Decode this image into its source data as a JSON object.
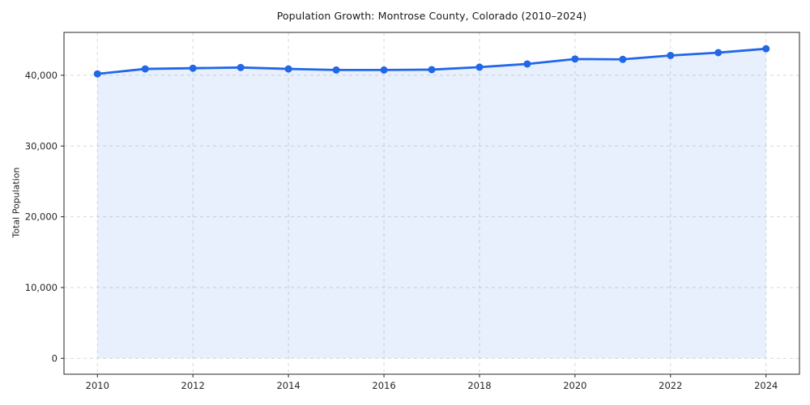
{
  "chart_data": {
    "type": "line",
    "title": "Population Growth: Montrose County, Colorado (2010–2024)",
    "xlabel": "",
    "ylabel": "Total Population",
    "x": [
      2010,
      2011,
      2012,
      2013,
      2014,
      2015,
      2016,
      2017,
      2018,
      2019,
      2020,
      2021,
      2022,
      2023,
      2024
    ],
    "series": [
      {
        "name": "Total Population",
        "values": [
          40200,
          40900,
          41000,
          41100,
          40900,
          40750,
          40750,
          40800,
          41150,
          41600,
          42300,
          42250,
          42800,
          43200,
          43750
        ]
      }
    ],
    "markers": true,
    "area_fill": true,
    "area_fill_baseline": 0,
    "grid": true,
    "grid_style": "dashed",
    "legend": "none",
    "xticks": {
      "values": [
        2010,
        2012,
        2014,
        2016,
        2018,
        2020,
        2022,
        2024
      ],
      "labels": [
        "2010",
        "2012",
        "2014",
        "2016",
        "2018",
        "2020",
        "2022",
        "2024"
      ]
    },
    "yticks": {
      "values": [
        0,
        10000,
        20000,
        30000,
        40000
      ],
      "labels": [
        "0",
        "10,000",
        "20,000",
        "30,000",
        "40,000"
      ]
    },
    "xlim": [
      2009.3,
      2024.7
    ],
    "ylim": [
      -2250,
      46060
    ],
    "colors": {
      "line": "#2267e8",
      "marker": "#2267e8",
      "fill": "rgba(34, 103, 232, 0.10)",
      "grid": "#d9d9d9",
      "axis": "#262626",
      "tick_label": "#262626",
      "background": "#ffffff"
    }
  }
}
